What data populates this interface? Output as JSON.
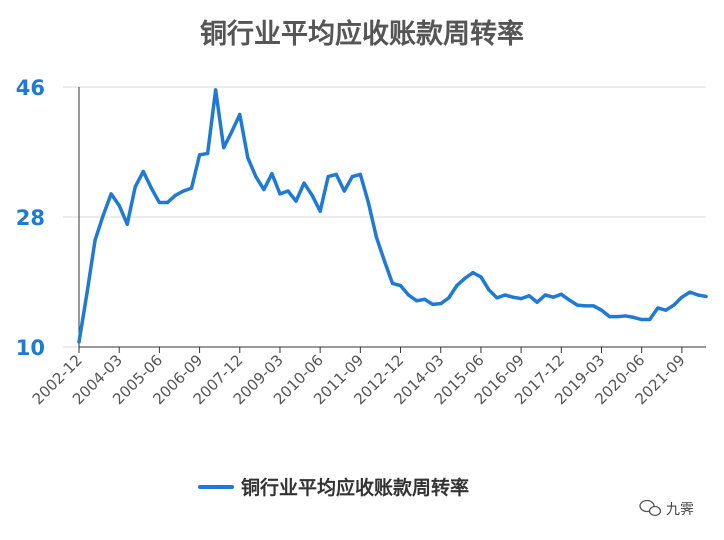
{
  "chart_data": {
    "type": "line",
    "title": "铜行业平均应收账款周转率",
    "xlabel": "",
    "ylabel": "",
    "ylim": [
      10,
      46
    ],
    "yticks": [
      "10",
      "28",
      "46"
    ],
    "xticks": [
      "2002-12",
      "2004-03",
      "2005-06",
      "2006-09",
      "2007-12",
      "2009-03",
      "2010-06",
      "2011-09",
      "2012-12",
      "2014-03",
      "2015-06",
      "2016-09",
      "2017-12",
      "2019-03",
      "2020-06",
      "2021-09"
    ],
    "grid": true,
    "legend_position": "bottom-center",
    "x": [
      "2002-12",
      "2003-03",
      "2003-06",
      "2003-09",
      "2003-12",
      "2004-03",
      "2004-06",
      "2004-09",
      "2004-12",
      "2005-03",
      "2005-06",
      "2005-09",
      "2005-12",
      "2006-03",
      "2006-06",
      "2006-09",
      "2006-12",
      "2007-03",
      "2007-06",
      "2007-09",
      "2007-12",
      "2008-03",
      "2008-06",
      "2008-09",
      "2008-12",
      "2009-03",
      "2009-06",
      "2009-09",
      "2009-12",
      "2010-03",
      "2010-06",
      "2010-09",
      "2010-12",
      "2011-03",
      "2011-06",
      "2011-09",
      "2011-12",
      "2012-03",
      "2012-06",
      "2012-09",
      "2012-12",
      "2013-03",
      "2013-06",
      "2013-09",
      "2013-12",
      "2014-03",
      "2014-06",
      "2014-09",
      "2014-12",
      "2015-03",
      "2015-06",
      "2015-09",
      "2015-12",
      "2016-03",
      "2016-06",
      "2016-09",
      "2016-12",
      "2017-03",
      "2017-06",
      "2017-09",
      "2017-12",
      "2018-03",
      "2018-06",
      "2018-09",
      "2018-12",
      "2019-03",
      "2019-06",
      "2019-09",
      "2019-12",
      "2020-03",
      "2020-06",
      "2020-09",
      "2020-12",
      "2021-03",
      "2021-06",
      "2021-09",
      "2021-12",
      "2022-03",
      "2022-06"
    ],
    "series": [
      {
        "name": "铜行业平均应收账款周转率",
        "color": "#1e7ad6",
        "values": [
          10.7,
          17.5,
          24.8,
          28.2,
          31.2,
          29.6,
          27.0,
          32.2,
          34.3,
          32.0,
          30.0,
          30.0,
          31.0,
          31.6,
          32.0,
          36.6,
          36.8,
          45.6,
          37.6,
          39.8,
          42.2,
          36.2,
          33.6,
          31.8,
          34.0,
          31.2,
          31.6,
          30.2,
          32.7,
          31.0,
          28.8,
          33.6,
          33.9,
          31.6,
          33.6,
          33.9,
          30.0,
          25.2,
          21.9,
          18.8,
          18.5,
          17.2,
          16.4,
          16.6,
          15.9,
          16.0,
          16.8,
          18.5,
          19.5,
          20.3,
          19.7,
          17.9,
          16.8,
          17.2,
          16.9,
          16.7,
          17.1,
          16.2,
          17.2,
          16.9,
          17.3,
          16.5,
          15.8,
          15.7,
          15.7,
          15.1,
          14.2,
          14.2,
          14.3,
          14.1,
          13.8,
          13.8,
          15.4,
          15.1,
          15.8,
          16.9,
          17.6,
          17.2,
          17.0
        ]
      }
    ]
  },
  "legend": {
    "label": "铜行业平均应收账款周转率",
    "icon": "line-swatch"
  },
  "watermark": {
    "text": "九霁",
    "icon": "wechat-icon"
  }
}
